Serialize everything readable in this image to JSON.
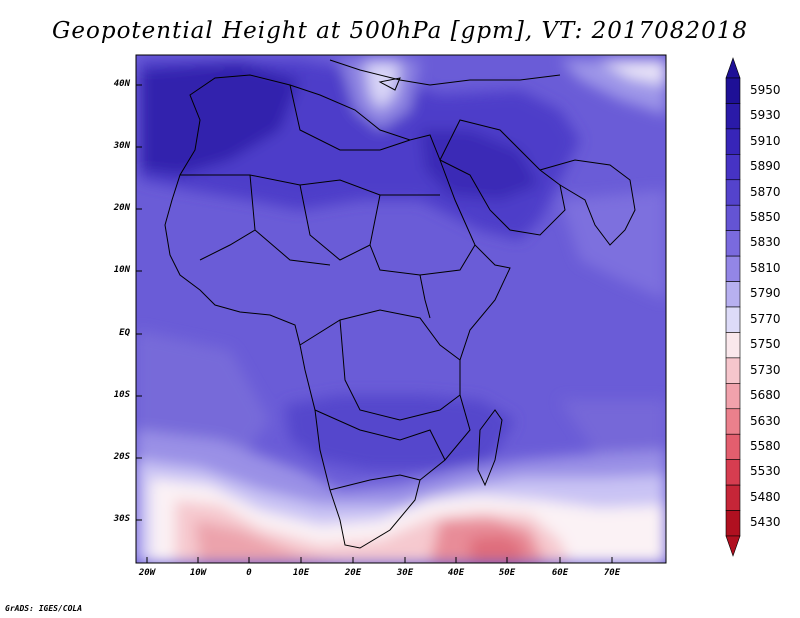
{
  "title": "Geopotential Height at 500hPa [gpm], VT: 2017082018",
  "footer": "GrADS: IGES/COLA",
  "map": {
    "variable": "Geopotential Height 500hPa",
    "units": "gpm",
    "region": "Africa and Middle East",
    "lat_labels": [
      "40N",
      "30N",
      "20N",
      "10N",
      "EQ",
      "10S",
      "20S",
      "30S"
    ],
    "lon_labels": [
      "20W",
      "10W",
      "0",
      "10E",
      "20E",
      "30E",
      "40E",
      "50E",
      "60E",
      "70E"
    ],
    "lon_range": [
      -22,
      80
    ],
    "lat_range": [
      -37,
      45
    ]
  },
  "legend": {
    "levels": [
      "5950",
      "5930",
      "5910",
      "5890",
      "5870",
      "5850",
      "5830",
      "5810",
      "5790",
      "5770",
      "5750",
      "5730",
      "5680",
      "5630",
      "5580",
      "5530",
      "5480",
      "5430"
    ],
    "colors": [
      "#1e1096",
      "#2a1aa8",
      "#3725b8",
      "#4633c4",
      "#5443cc",
      "#6454d4",
      "#7a6ade",
      "#9386e6",
      "#b7b0f0",
      "#dddbf8",
      "#fae8ec",
      "#f6c6cc",
      "#f1a2ac",
      "#eb808c",
      "#e35e6e",
      "#d63d50",
      "#c62638",
      "#b01020"
    ]
  },
  "colors": {
    "land_border": "#000000",
    "background": "#ffffff"
  }
}
